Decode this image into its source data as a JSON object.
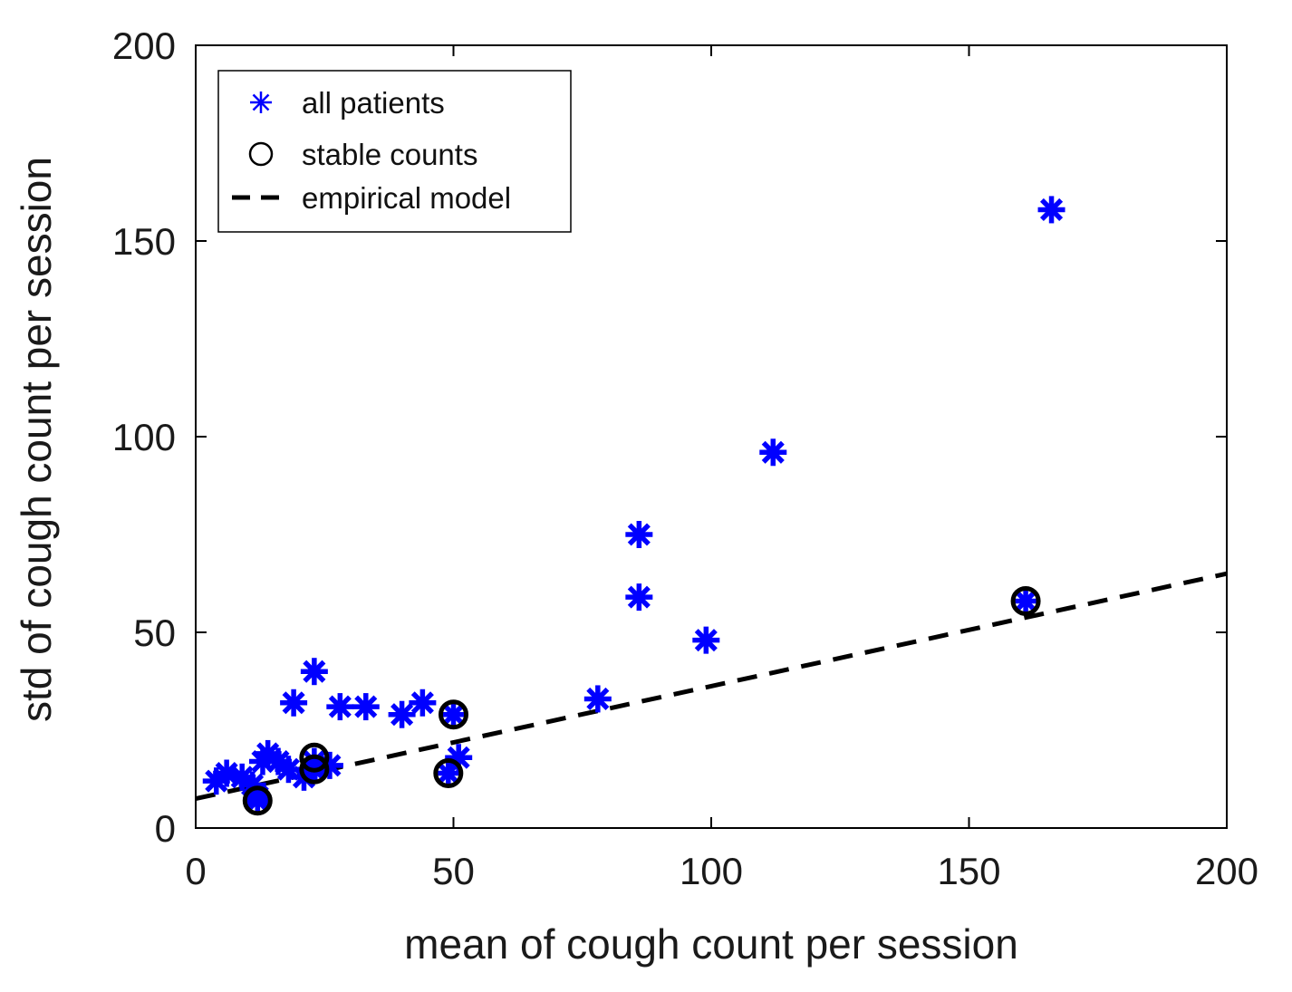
{
  "chart_data": {
    "type": "scatter",
    "xlabel": "mean of cough count per session",
    "ylabel": "std of cough count per session",
    "xlim": [
      0,
      200
    ],
    "ylim": [
      0,
      200
    ],
    "xticks": [
      0,
      50,
      100,
      150,
      200
    ],
    "yticks": [
      0,
      50,
      100,
      150,
      200
    ],
    "grid": false,
    "legend_position": "top-left",
    "series": [
      {
        "name": "all patients",
        "marker": "asterisk",
        "color": "#0000ff",
        "points": [
          {
            "x": 4,
            "y": 12
          },
          {
            "x": 6,
            "y": 14
          },
          {
            "x": 9,
            "y": 13
          },
          {
            "x": 11,
            "y": 11
          },
          {
            "x": 12,
            "y": 8
          },
          {
            "x": 12,
            "y": 7
          },
          {
            "x": 13,
            "y": 17
          },
          {
            "x": 14,
            "y": 19
          },
          {
            "x": 16,
            "y": 17
          },
          {
            "x": 18,
            "y": 15
          },
          {
            "x": 19,
            "y": 32
          },
          {
            "x": 21,
            "y": 13
          },
          {
            "x": 23,
            "y": 40
          },
          {
            "x": 23,
            "y": 17
          },
          {
            "x": 23,
            "y": 15
          },
          {
            "x": 26,
            "y": 16
          },
          {
            "x": 28,
            "y": 31
          },
          {
            "x": 33,
            "y": 31
          },
          {
            "x": 40,
            "y": 29
          },
          {
            "x": 44,
            "y": 32
          },
          {
            "x": 49,
            "y": 14
          },
          {
            "x": 50,
            "y": 29
          },
          {
            "x": 51,
            "y": 18
          },
          {
            "x": 78,
            "y": 33
          },
          {
            "x": 86,
            "y": 75
          },
          {
            "x": 86,
            "y": 59
          },
          {
            "x": 99,
            "y": 48
          },
          {
            "x": 112,
            "y": 96
          },
          {
            "x": 161,
            "y": 58
          },
          {
            "x": 166,
            "y": 158
          }
        ]
      },
      {
        "name": "stable counts",
        "marker": "circle",
        "color": "#000000",
        "points": [
          {
            "x": 12,
            "y": 7
          },
          {
            "x": 23,
            "y": 18
          },
          {
            "x": 23,
            "y": 15
          },
          {
            "x": 49,
            "y": 14
          },
          {
            "x": 50,
            "y": 29
          },
          {
            "x": 161,
            "y": 58
          }
        ]
      },
      {
        "name": "empirical model",
        "marker": "dashed-line",
        "color": "#000000",
        "x": [
          0,
          200
        ],
        "y": [
          7.5,
          65
        ]
      }
    ]
  }
}
